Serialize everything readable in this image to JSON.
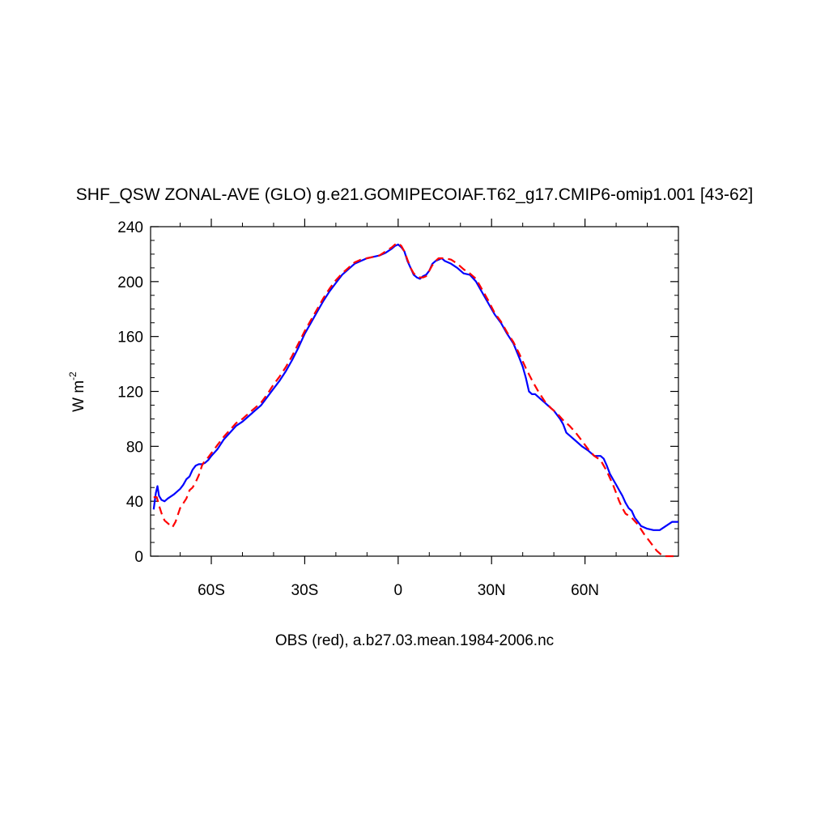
{
  "chart_data": {
    "type": "line",
    "title": "SHF_QSW ZONAL-AVE (GLO) g.e21.GOMIPECOIAF.T62_g17.CMIP6-omip1.001 [43-62]",
    "ylabel_main": "W m",
    "ylabel_exp": "-2",
    "xlabel": "OBS (red), a.b27.03.mean.1984-2006.nc",
    "xlim": [
      -79.5,
      90
    ],
    "ylim": [
      0,
      240
    ],
    "yticks": [
      0,
      40,
      80,
      120,
      160,
      200,
      240
    ],
    "xticks": [
      {
        "value": -60,
        "label": "60S"
      },
      {
        "value": -30,
        "label": "30S"
      },
      {
        "value": 0,
        "label": "0"
      },
      {
        "value": 30,
        "label": "30N"
      },
      {
        "value": 60,
        "label": "60N"
      }
    ],
    "grid": false,
    "series": [
      {
        "color": "#0000ff",
        "dash": "solid",
        "points": [
          [
            -78.5,
            34
          ],
          [
            -77.8,
            46
          ],
          [
            -77.3,
            51
          ],
          [
            -76.8,
            44
          ],
          [
            -76,
            41
          ],
          [
            -75,
            40
          ],
          [
            -74,
            42
          ],
          [
            -72,
            45
          ],
          [
            -70,
            49
          ],
          [
            -69,
            52
          ],
          [
            -68,
            56
          ],
          [
            -67,
            58
          ],
          [
            -66,
            63
          ],
          [
            -65,
            66
          ],
          [
            -64,
            67
          ],
          [
            -63,
            67
          ],
          [
            -62,
            68
          ],
          [
            -61,
            70
          ],
          [
            -60,
            73
          ],
          [
            -58,
            78
          ],
          [
            -56,
            85
          ],
          [
            -54,
            90
          ],
          [
            -52,
            95
          ],
          [
            -50,
            98
          ],
          [
            -48,
            102
          ],
          [
            -46,
            106
          ],
          [
            -44,
            110
          ],
          [
            -42,
            116
          ],
          [
            -40,
            122
          ],
          [
            -38,
            128
          ],
          [
            -36,
            135
          ],
          [
            -34,
            143
          ],
          [
            -32,
            152
          ],
          [
            -30,
            162
          ],
          [
            -28,
            170
          ],
          [
            -26,
            178
          ],
          [
            -24,
            186
          ],
          [
            -22,
            193
          ],
          [
            -20,
            199
          ],
          [
            -18,
            205
          ],
          [
            -16,
            209
          ],
          [
            -14,
            213
          ],
          [
            -12,
            215
          ],
          [
            -10,
            217
          ],
          [
            -8,
            218
          ],
          [
            -6,
            219
          ],
          [
            -4,
            221
          ],
          [
            -2,
            224
          ],
          [
            -1,
            226
          ],
          [
            0,
            227
          ],
          [
            1,
            225
          ],
          [
            2,
            222
          ],
          [
            3,
            215
          ],
          [
            4,
            210
          ],
          [
            5,
            205
          ],
          [
            6,
            203
          ],
          [
            7,
            202
          ],
          [
            8,
            204
          ],
          [
            9,
            205
          ],
          [
            10,
            208
          ],
          [
            11,
            213
          ],
          [
            12,
            215
          ],
          [
            13,
            216
          ],
          [
            14,
            217
          ],
          [
            15,
            215
          ],
          [
            17,
            213
          ],
          [
            19,
            210
          ],
          [
            21,
            206
          ],
          [
            23,
            205
          ],
          [
            25,
            200
          ],
          [
            27,
            192
          ],
          [
            29,
            184
          ],
          [
            31,
            176
          ],
          [
            33,
            170
          ],
          [
            35,
            162
          ],
          [
            37,
            155
          ],
          [
            39,
            144
          ],
          [
            40,
            138
          ],
          [
            41,
            130
          ],
          [
            42,
            120
          ],
          [
            43,
            118
          ],
          [
            44,
            118
          ],
          [
            45,
            116
          ],
          [
            46,
            114
          ],
          [
            47,
            112
          ],
          [
            48,
            110
          ],
          [
            50,
            106
          ],
          [
            52,
            100
          ],
          [
            53,
            96
          ],
          [
            54,
            90
          ],
          [
            55,
            88
          ],
          [
            57,
            84
          ],
          [
            59,
            80
          ],
          [
            61,
            77
          ],
          [
            63,
            73
          ],
          [
            65,
            73
          ],
          [
            66,
            71
          ],
          [
            67,
            66
          ],
          [
            68,
            60
          ],
          [
            69,
            56
          ],
          [
            70,
            52
          ],
          [
            71,
            48
          ],
          [
            72,
            44
          ],
          [
            73,
            39
          ],
          [
            74,
            35
          ],
          [
            75,
            33
          ],
          [
            76,
            28
          ],
          [
            77,
            25
          ],
          [
            78,
            22
          ],
          [
            80,
            20
          ],
          [
            82,
            19
          ],
          [
            84,
            19
          ],
          [
            86,
            22
          ],
          [
            88,
            25
          ],
          [
            90,
            25
          ]
        ]
      },
      {
        "color": "#ff0000",
        "dash": "dashed",
        "points": [
          [
            -78.5,
            43
          ],
          [
            -77.5,
            43
          ],
          [
            -76.8,
            37
          ],
          [
            -75.8,
            30
          ],
          [
            -75,
            26
          ],
          [
            -74,
            24
          ],
          [
            -72.5,
            21
          ],
          [
            -71.5,
            25
          ],
          [
            -70,
            35
          ],
          [
            -68,
            42
          ],
          [
            -67,
            48
          ],
          [
            -66,
            50
          ],
          [
            -65,
            54
          ],
          [
            -64,
            59
          ],
          [
            -63,
            66
          ],
          [
            -62,
            70
          ],
          [
            -61,
            72
          ],
          [
            -60,
            75
          ],
          [
            -58,
            81
          ],
          [
            -56,
            87
          ],
          [
            -54,
            92
          ],
          [
            -52,
            97
          ],
          [
            -50,
            100
          ],
          [
            -48,
            104
          ],
          [
            -46,
            108
          ],
          [
            -44,
            112
          ],
          [
            -42,
            118
          ],
          [
            -40,
            125
          ],
          [
            -38,
            131
          ],
          [
            -36,
            138
          ],
          [
            -34,
            146
          ],
          [
            -32,
            155
          ],
          [
            -30,
            164
          ],
          [
            -28,
            172
          ],
          [
            -26,
            180
          ],
          [
            -24,
            188
          ],
          [
            -22,
            195
          ],
          [
            -20,
            201
          ],
          [
            -18,
            206
          ],
          [
            -16,
            210
          ],
          [
            -14,
            214
          ],
          [
            -12,
            216
          ],
          [
            -10,
            217
          ],
          [
            -8,
            218
          ],
          [
            -6,
            219
          ],
          [
            -4,
            222
          ],
          [
            -2,
            225
          ],
          [
            -1,
            227
          ],
          [
            0,
            228
          ],
          [
            1,
            226
          ],
          [
            2,
            222
          ],
          [
            3,
            216
          ],
          [
            4,
            210
          ],
          [
            5,
            206
          ],
          [
            6,
            204
          ],
          [
            7,
            203
          ],
          [
            8,
            203
          ],
          [
            9,
            204
          ],
          [
            10,
            208
          ],
          [
            11,
            212
          ],
          [
            12,
            215
          ],
          [
            13,
            217
          ],
          [
            15,
            217
          ],
          [
            17,
            216
          ],
          [
            19,
            213
          ],
          [
            21,
            209
          ],
          [
            23,
            206
          ],
          [
            25,
            202
          ],
          [
            27,
            194
          ],
          [
            29,
            186
          ],
          [
            31,
            177
          ],
          [
            33,
            171
          ],
          [
            35,
            163
          ],
          [
            37,
            156
          ],
          [
            39,
            147
          ],
          [
            41,
            137
          ],
          [
            43,
            128
          ],
          [
            45,
            120
          ],
          [
            47,
            113
          ],
          [
            49,
            108
          ],
          [
            51,
            104
          ],
          [
            53,
            99
          ],
          [
            55,
            95
          ],
          [
            57,
            90
          ],
          [
            59,
            84
          ],
          [
            61,
            78
          ],
          [
            63,
            73
          ],
          [
            65,
            70
          ],
          [
            67,
            62
          ],
          [
            69,
            52
          ],
          [
            70,
            46
          ],
          [
            71,
            40
          ],
          [
            72,
            35
          ],
          [
            73,
            31
          ],
          [
            75,
            28
          ],
          [
            77,
            23
          ],
          [
            79,
            16
          ],
          [
            81,
            10
          ],
          [
            83,
            4
          ],
          [
            85,
            0
          ],
          [
            87,
            0
          ],
          [
            90,
            0
          ]
        ]
      }
    ]
  }
}
